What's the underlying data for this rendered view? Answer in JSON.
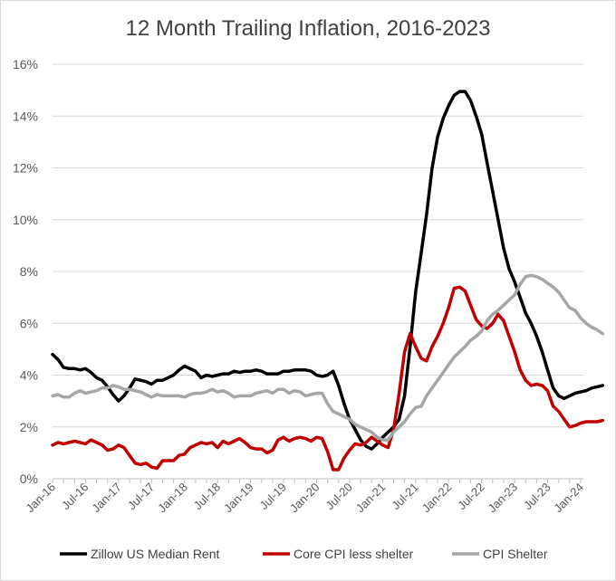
{
  "chart_data": {
    "type": "line",
    "title": "12 Month Trailing Inflation, 2016-2023",
    "xlabel": "",
    "ylabel": "",
    "ylim": [
      0,
      16
    ],
    "yticks": [
      "0%",
      "2%",
      "4%",
      "6%",
      "8%",
      "10%",
      "12%",
      "14%",
      "16%"
    ],
    "xticks": [
      "Jan-16",
      "Jul-16",
      "Jan-17",
      "Jul-17",
      "Jan-18",
      "Jul-18",
      "Jan-19",
      "Jul-19",
      "Jan-20",
      "Jul-20",
      "Jan-21",
      "Jul-21",
      "Jan-22",
      "Jul-22",
      "Jan-23",
      "Jul-23",
      "Jan-24"
    ],
    "grid": "horizontal",
    "legend_position": "bottom",
    "x_start": "Jan-16",
    "x_step": "month",
    "series": [
      {
        "name": "Zillow US Median Rent",
        "color": "#000000",
        "values": [
          4.8,
          4.6,
          4.3,
          4.25,
          4.25,
          4.2,
          4.25,
          4.1,
          3.9,
          3.8,
          3.55,
          3.25,
          3.0,
          3.2,
          3.5,
          3.85,
          3.8,
          3.75,
          3.65,
          3.8,
          3.8,
          3.9,
          4.0,
          4.2,
          4.35,
          4.25,
          4.15,
          3.9,
          4.0,
          3.95,
          4.0,
          4.05,
          4.05,
          4.15,
          4.1,
          4.15,
          4.15,
          4.2,
          4.15,
          4.05,
          4.05,
          4.05,
          4.15,
          4.15,
          4.2,
          4.2,
          4.2,
          4.15,
          4.0,
          3.95,
          4.0,
          4.15,
          3.6,
          2.9,
          2.3,
          1.9,
          1.5,
          1.25,
          1.15,
          1.35,
          1.6,
          1.8,
          2.0,
          2.3,
          3.2,
          5.1,
          7.2,
          8.7,
          10.2,
          12.0,
          13.2,
          13.9,
          14.4,
          14.8,
          14.95,
          14.95,
          14.6,
          14.0,
          13.3,
          12.2,
          11.1,
          10.0,
          8.9,
          8.1,
          7.6,
          7.0,
          6.4,
          6.0,
          5.5,
          4.9,
          4.2,
          3.5,
          3.2,
          3.1,
          3.2,
          3.3,
          3.35,
          3.4,
          3.5,
          3.55,
          3.6
        ]
      },
      {
        "name": "Core CPI less shelter",
        "color": "#c00000",
        "values": [
          1.3,
          1.4,
          1.35,
          1.4,
          1.45,
          1.4,
          1.35,
          1.5,
          1.4,
          1.3,
          1.1,
          1.15,
          1.3,
          1.2,
          0.9,
          0.6,
          0.55,
          0.6,
          0.45,
          0.4,
          0.7,
          0.7,
          0.7,
          0.9,
          0.95,
          1.2,
          1.3,
          1.4,
          1.35,
          1.4,
          1.2,
          1.45,
          1.35,
          1.45,
          1.55,
          1.4,
          1.2,
          1.15,
          1.15,
          1.0,
          1.1,
          1.5,
          1.6,
          1.45,
          1.55,
          1.6,
          1.55,
          1.45,
          1.6,
          1.55,
          1.05,
          0.35,
          0.35,
          0.8,
          1.1,
          1.35,
          1.3,
          1.4,
          1.6,
          1.45,
          1.3,
          1.2,
          1.9,
          3.3,
          4.9,
          5.6,
          5.1,
          4.65,
          4.55,
          5.1,
          5.5,
          6.0,
          6.6,
          7.35,
          7.4,
          7.25,
          6.7,
          6.15,
          5.9,
          5.8,
          6.0,
          6.35,
          6.1,
          5.5,
          4.9,
          4.2,
          3.8,
          3.6,
          3.65,
          3.6,
          3.4,
          2.8,
          2.6,
          2.3,
          2.0,
          2.05,
          2.15,
          2.2,
          2.2,
          2.2,
          2.25
        ]
      },
      {
        "name": "CPI Shelter",
        "color": "#a6a6a6",
        "values": [
          3.2,
          3.25,
          3.15,
          3.15,
          3.3,
          3.4,
          3.3,
          3.35,
          3.4,
          3.5,
          3.5,
          3.6,
          3.55,
          3.45,
          3.45,
          3.4,
          3.35,
          3.25,
          3.15,
          3.25,
          3.2,
          3.2,
          3.2,
          3.2,
          3.15,
          3.25,
          3.3,
          3.3,
          3.35,
          3.45,
          3.35,
          3.4,
          3.3,
          3.15,
          3.2,
          3.2,
          3.2,
          3.3,
          3.35,
          3.4,
          3.3,
          3.45,
          3.45,
          3.3,
          3.4,
          3.35,
          3.2,
          3.25,
          3.3,
          3.3,
          2.9,
          2.6,
          2.5,
          2.4,
          2.3,
          2.1,
          2.0,
          1.9,
          1.8,
          1.6,
          1.5,
          1.5,
          1.8,
          2.0,
          2.2,
          2.5,
          2.75,
          2.8,
          3.2,
          3.5,
          3.8,
          4.1,
          4.4,
          4.7,
          4.9,
          5.1,
          5.35,
          5.5,
          5.7,
          6.1,
          6.35,
          6.5,
          6.7,
          6.9,
          7.1,
          7.5,
          7.8,
          7.85,
          7.8,
          7.7,
          7.55,
          7.4,
          7.2,
          6.9,
          6.6,
          6.5,
          6.2,
          6.0,
          5.85,
          5.75,
          5.6
        ]
      }
    ]
  }
}
